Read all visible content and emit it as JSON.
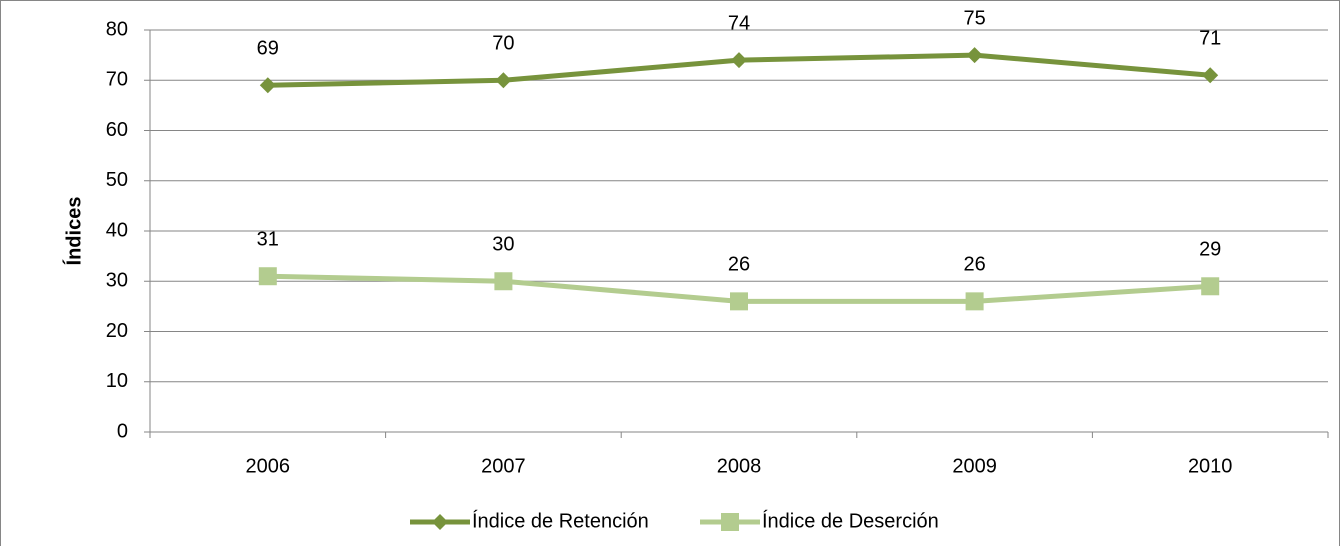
{
  "chart_data": {
    "type": "line",
    "y_label": "Índices",
    "categories": [
      "2006",
      "2007",
      "2008",
      "2009",
      "2010"
    ],
    "series": [
      {
        "name": "Índice de Retención",
        "color": "#77933c",
        "marker": "diamond",
        "values": [
          69,
          70,
          74,
          75,
          71
        ]
      },
      {
        "name": "Índice de Deserción",
        "color": "#b3cc8f",
        "marker": "square",
        "values": [
          31,
          30,
          26,
          26,
          29
        ]
      }
    ],
    "ylim": [
      0,
      80
    ],
    "yticks": [
      0,
      10,
      20,
      30,
      40,
      50,
      60,
      70,
      80
    ],
    "grid": true,
    "legend": "bottom"
  }
}
